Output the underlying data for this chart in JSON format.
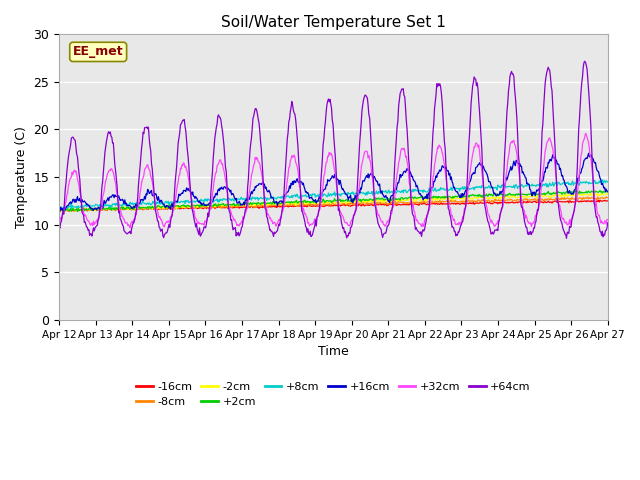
{
  "title": "Soil/Water Temperature Set 1",
  "xlabel": "Time",
  "ylabel": "Temperature (C)",
  "ylim": [
    0,
    30
  ],
  "xlim": [
    0,
    15
  ],
  "xtick_labels": [
    "Apr 12",
    "Apr 13",
    "Apr 14",
    "Apr 15",
    "Apr 16",
    "Apr 17",
    "Apr 18",
    "Apr 19",
    "Apr 20",
    "Apr 21",
    "Apr 22",
    "Apr 23",
    "Apr 24",
    "Apr 25",
    "Apr 26",
    "Apr 27"
  ],
  "fig_bg": "#ffffff",
  "plot_bg": "#e8e8e8",
  "label_box_text": "EE_met",
  "label_box_bg": "#ffffc0",
  "label_box_border": "#8b0000",
  "series": [
    {
      "label": "-16cm",
      "color": "#ff0000"
    },
    {
      "label": "-8cm",
      "color": "#ff8800"
    },
    {
      "label": "-2cm",
      "color": "#ffff00"
    },
    {
      "label": "+2cm",
      "color": "#00cc00"
    },
    {
      "label": "+8cm",
      "color": "#00cccc"
    },
    {
      "label": "+16cm",
      "color": "#0000cc"
    },
    {
      "label": "+32cm",
      "color": "#ff44ff"
    },
    {
      "label": "+64cm",
      "color": "#8800cc"
    }
  ]
}
